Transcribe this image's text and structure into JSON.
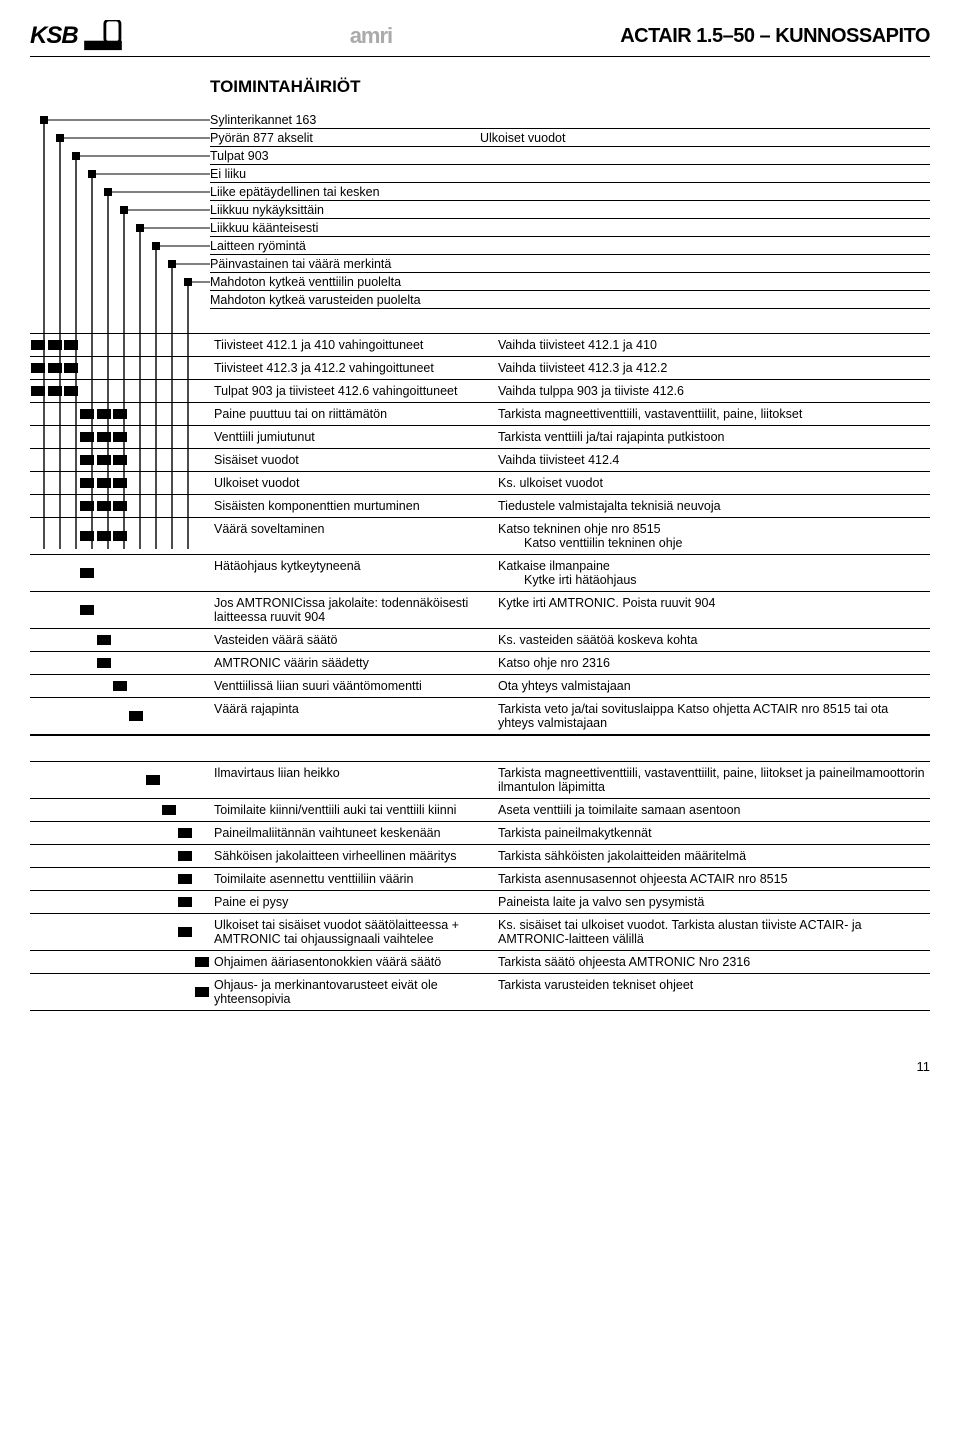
{
  "header": {
    "ksb": "KSB",
    "amri": "amri",
    "doc_title": "ACTAIR 1.5–50 – KUNNOSSAPITO"
  },
  "section_heading": "TOIMINTAHÄIRIÖT",
  "ladder": {
    "vline_color": "#000000",
    "box_color": "#000000",
    "bg_color": "#ffffff",
    "vlines_x": [
      14,
      30,
      46,
      62,
      78,
      94,
      110,
      126,
      142,
      158
    ]
  },
  "top": {
    "rows": [
      {
        "left": "Sylinterikannet 163",
        "right": ""
      },
      {
        "left": "Pyörän 877 akselit",
        "right": "Ulkoiset vuodot"
      },
      {
        "left": "Tulpat 903",
        "right": ""
      },
      {
        "left": "Ei liiku",
        "right": ""
      },
      {
        "left": "Liike epätäydellinen tai kesken",
        "right": ""
      },
      {
        "left": "Liikkuu nykäyksittäin",
        "right": ""
      },
      {
        "left": "Liikkuu käänteisesti",
        "right": ""
      },
      {
        "left": "Laitteen ryömintä",
        "right": ""
      },
      {
        "left": "Päinvastainen tai väärä merkintä",
        "right": ""
      },
      {
        "left": "Mahdoton kytkeä venttiilin puolelta",
        "right": ""
      },
      {
        "left": "Mahdoton kytkeä varusteiden puolelta",
        "right": ""
      }
    ]
  },
  "table1": [
    {
      "marks": [
        1,
        1,
        1,
        0,
        0,
        0,
        0,
        0,
        0,
        0,
        0
      ],
      "cause": "Tiivisteet 412.1 ja 410 vahingoittuneet",
      "remedy": "Vaihda tiivisteet 412.1 ja 410"
    },
    {
      "marks": [
        1,
        1,
        1,
        0,
        0,
        0,
        0,
        0,
        0,
        0,
        0
      ],
      "cause": "Tiivisteet 412.3 ja 412.2 vahingoittuneet",
      "remedy": "Vaihda tiivisteet 412.3 ja 412.2"
    },
    {
      "marks": [
        1,
        1,
        1,
        0,
        0,
        0,
        0,
        0,
        0,
        0,
        0
      ],
      "cause": "Tulpat 903 ja tiivisteet 412.6 vahingoittuneet",
      "remedy": "Vaihda tulppa 903 ja tiiviste 412.6"
    },
    {
      "marks": [
        0,
        0,
        0,
        1,
        1,
        1,
        0,
        0,
        0,
        0,
        0
      ],
      "cause": "Paine puuttuu tai on riittämätön",
      "remedy": "Tarkista magneettiventtiili, vastaventtiilit, paine, liitokset"
    },
    {
      "marks": [
        0,
        0,
        0,
        1,
        1,
        1,
        0,
        0,
        0,
        0,
        0
      ],
      "cause": "Venttiili jumiutunut",
      "remedy": "Tarkista venttiili ja/tai rajapinta putkistoon"
    },
    {
      "marks": [
        0,
        0,
        0,
        1,
        1,
        1,
        0,
        0,
        0,
        0,
        0
      ],
      "cause": "Sisäiset vuodot",
      "remedy": "Vaihda tiivisteet 412.4"
    },
    {
      "marks": [
        0,
        0,
        0,
        1,
        1,
        1,
        0,
        0,
        0,
        0,
        0
      ],
      "cause": "Ulkoiset vuodot",
      "remedy": "Ks. ulkoiset vuodot"
    },
    {
      "marks": [
        0,
        0,
        0,
        1,
        1,
        1,
        0,
        0,
        0,
        0,
        0
      ],
      "cause": "Sisäisten komponenttien murtuminen",
      "remedy": "Tiedustele valmistajalta teknisiä neuvoja"
    },
    {
      "marks": [
        0,
        0,
        0,
        1,
        1,
        1,
        0,
        0,
        0,
        0,
        0
      ],
      "cause": "Väärä soveltaminen",
      "remedy": "Katso tekninen ohje nro 8515",
      "remedy2": "Katso venttiilin tekninen ohje"
    },
    {
      "marks": [
        0,
        0,
        0,
        1,
        0,
        0,
        0,
        0,
        0,
        0,
        0
      ],
      "cause": "Hätäohjaus kytkeytyneenä",
      "remedy": "Katkaise ilmanpaine",
      "remedy2": "Kytke irti hätäohjaus"
    },
    {
      "marks": [
        0,
        0,
        0,
        1,
        0,
        0,
        0,
        0,
        0,
        0,
        0
      ],
      "cause": "Jos AMTRONICissa jakolaite: todennäköisesti laitteessa ruuvit 904",
      "remedy": "Kytke irti AMTRONIC. Poista ruuvit 904"
    },
    {
      "marks": [
        0,
        0,
        0,
        0,
        1,
        0,
        0,
        0,
        0,
        0,
        0
      ],
      "cause": "Vasteiden väärä säätö",
      "remedy": "Ks. vasteiden säätöä koskeva kohta"
    },
    {
      "marks": [
        0,
        0,
        0,
        0,
        1,
        0,
        0,
        0,
        0,
        0,
        0
      ],
      "cause": "AMTRONIC väärin säädetty",
      "remedy": "Katso ohje nro 2316"
    },
    {
      "marks": [
        0,
        0,
        0,
        0,
        0,
        1,
        0,
        0,
        0,
        0,
        0
      ],
      "cause": "Venttiilissä liian suuri vääntömomentti",
      "remedy": "Ota yhteys valmistajaan"
    },
    {
      "marks": [
        0,
        0,
        0,
        0,
        0,
        0,
        1,
        0,
        0,
        0,
        0
      ],
      "cause": "Väärä rajapinta",
      "remedy": "Tarkista veto ja/tai sovituslaippa Katso ohjetta ACTAIR nro 8515 tai ota yhteys valmistajaan"
    }
  ],
  "table2": [
    {
      "marks": [
        0,
        0,
        0,
        0,
        0,
        0,
        0,
        1,
        0,
        0,
        0
      ],
      "cause": "Ilmavirtaus liian heikko",
      "remedy": "Tarkista magneettiventtiili, vastaventtiilit, paine, liitokset ja paineilmamoottorin ilmantulon läpimitta"
    },
    {
      "marks": [
        0,
        0,
        0,
        0,
        0,
        0,
        0,
        0,
        1,
        0,
        0
      ],
      "cause": "Toimilaite kiinni/venttiili auki tai venttiili kiinni",
      "remedy": "Aseta venttiili ja toimilaite samaan asentoon"
    },
    {
      "marks": [
        0,
        0,
        0,
        0,
        0,
        0,
        0,
        0,
        0,
        1,
        0
      ],
      "cause": "Paineilmaliitännän vaihtuneet keskenään",
      "remedy": "Tarkista paineilmakytkennät"
    },
    {
      "marks": [
        0,
        0,
        0,
        0,
        0,
        0,
        0,
        0,
        0,
        1,
        0
      ],
      "cause": "Sähköisen jakolaitteen virheellinen määritys",
      "remedy": "Tarkista sähköisten jakolaitteiden määritelmä"
    },
    {
      "marks": [
        0,
        0,
        0,
        0,
        0,
        0,
        0,
        0,
        0,
        1,
        0
      ],
      "cause": "Toimilaite asennettu venttiiliin väärin",
      "remedy": "Tarkista asennusasennot ohjeesta ACTAIR nro 8515"
    },
    {
      "marks": [
        0,
        0,
        0,
        0,
        0,
        0,
        0,
        0,
        0,
        1,
        0
      ],
      "cause": "Paine ei pysy",
      "remedy": "Paineista laite ja valvo sen pysymistä"
    },
    {
      "marks": [
        0,
        0,
        0,
        0,
        0,
        0,
        0,
        0,
        0,
        1,
        0
      ],
      "cause": "Ulkoiset tai sisäiset vuodot säätölaitteessa + AMTRONIC tai ohjaussignaali vaihtelee",
      "remedy": "Ks. sisäiset tai ulkoiset vuodot. Tarkista alustan tiiviste ACTAIR- ja AMTRONIC-laitteen välillä"
    },
    {
      "marks": [
        0,
        0,
        0,
        0,
        0,
        0,
        0,
        0,
        0,
        0,
        1
      ],
      "cause": "Ohjaimen ääriasentonokkien väärä säätö",
      "remedy": "Tarkista säätö ohjeesta AMTRONIC Nro 2316"
    },
    {
      "marks": [
        0,
        0,
        0,
        0,
        0,
        0,
        0,
        0,
        0,
        0,
        1
      ],
      "cause": "Ohjaus- ja merkinantovarusteet eivät ole yhteensopivia",
      "remedy": "Tarkista varusteiden tekniset ohjeet"
    }
  ],
  "page_number": "11"
}
